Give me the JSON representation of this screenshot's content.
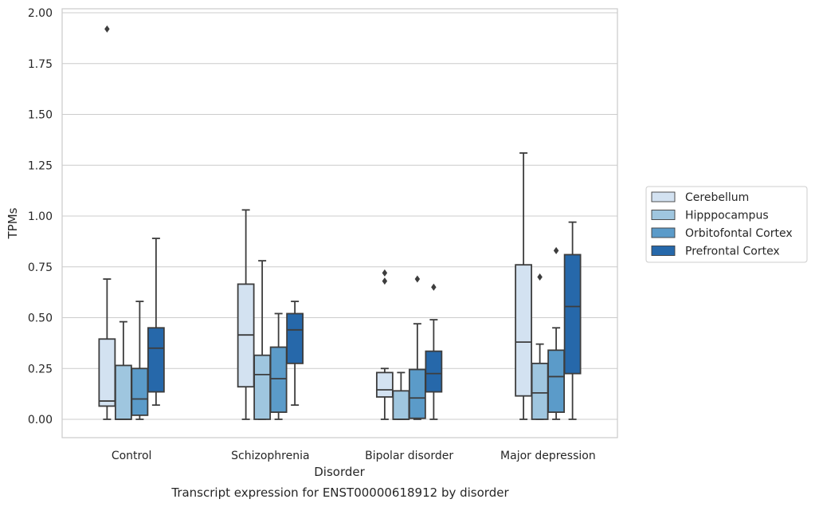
{
  "chart_data": {
    "type": "box",
    "title": "",
    "caption": "Transcript expression for ENST00000618912 by disorder",
    "xlabel": "Disorder",
    "ylabel": "TPMs",
    "ylim": [
      -0.09,
      2.02
    ],
    "yticks": [
      "0.00",
      "0.25",
      "0.50",
      "0.75",
      "1.00",
      "1.25",
      "1.50",
      "1.75",
      "2.00"
    ],
    "grid": "horizontal",
    "legend_position": "right",
    "categories": [
      "Control",
      "Schizophrenia",
      "Bipolar disorder",
      "Major depression"
    ],
    "series": [
      {
        "name": "Cerebellum",
        "color": "#d3e2f1",
        "boxes": [
          {
            "whislo": 0.0,
            "q1": 0.065,
            "med": 0.09,
            "q3": 0.395,
            "whishi": 0.69,
            "fliers": [
              1.92
            ]
          },
          {
            "whislo": 0.0,
            "q1": 0.16,
            "med": 0.415,
            "q3": 0.665,
            "whishi": 1.03,
            "fliers": []
          },
          {
            "whislo": 0.0,
            "q1": 0.11,
            "med": 0.145,
            "q3": 0.23,
            "whishi": 0.25,
            "fliers": [
              0.68,
              0.72
            ]
          },
          {
            "whislo": 0.0,
            "q1": 0.115,
            "med": 0.38,
            "q3": 0.76,
            "whishi": 1.31,
            "fliers": []
          }
        ]
      },
      {
        "name": "Hipppocampus",
        "color": "#9fc6df",
        "boxes": [
          {
            "whislo": 0.0,
            "q1": 0.0,
            "med": 0.0,
            "q3": 0.265,
            "whishi": 0.48,
            "fliers": []
          },
          {
            "whislo": 0.0,
            "q1": 0.0,
            "med": 0.22,
            "q3": 0.315,
            "whishi": 0.78,
            "fliers": []
          },
          {
            "whislo": 0.0,
            "q1": 0.0,
            "med": 0.0,
            "q3": 0.14,
            "whishi": 0.23,
            "fliers": []
          },
          {
            "whislo": 0.0,
            "q1": 0.0,
            "med": 0.13,
            "q3": 0.275,
            "whishi": 0.37,
            "fliers": [
              0.7
            ]
          }
        ]
      },
      {
        "name": "Orbitofontal Cortex",
        "color": "#5b9bc9",
        "boxes": [
          {
            "whislo": 0.0,
            "q1": 0.02,
            "med": 0.1,
            "q3": 0.25,
            "whishi": 0.58,
            "fliers": []
          },
          {
            "whislo": 0.0,
            "q1": 0.035,
            "med": 0.2,
            "q3": 0.355,
            "whishi": 0.52,
            "fliers": []
          },
          {
            "whislo": 0.0,
            "q1": 0.005,
            "med": 0.105,
            "q3": 0.245,
            "whishi": 0.47,
            "fliers": [
              0.69
            ]
          },
          {
            "whislo": 0.0,
            "q1": 0.035,
            "med": 0.21,
            "q3": 0.34,
            "whishi": 0.45,
            "fliers": [
              0.83
            ]
          }
        ]
      },
      {
        "name": "Prefrontal Cortex",
        "color": "#2668aa",
        "boxes": [
          {
            "whislo": 0.07,
            "q1": 0.135,
            "med": 0.35,
            "q3": 0.45,
            "whishi": 0.89,
            "fliers": []
          },
          {
            "whislo": 0.07,
            "q1": 0.275,
            "med": 0.44,
            "q3": 0.52,
            "whishi": 0.58,
            "fliers": []
          },
          {
            "whislo": 0.0,
            "q1": 0.135,
            "med": 0.225,
            "q3": 0.335,
            "whishi": 0.49,
            "fliers": [
              0.65
            ]
          },
          {
            "whislo": 0.0,
            "q1": 0.225,
            "med": 0.555,
            "q3": 0.81,
            "whishi": 0.97,
            "fliers": []
          }
        ]
      }
    ],
    "colors": {
      "axes_edge": "#cccccc",
      "grid": "#cccccc",
      "box_edge": "#3d3d3d",
      "text": "#262626"
    }
  }
}
